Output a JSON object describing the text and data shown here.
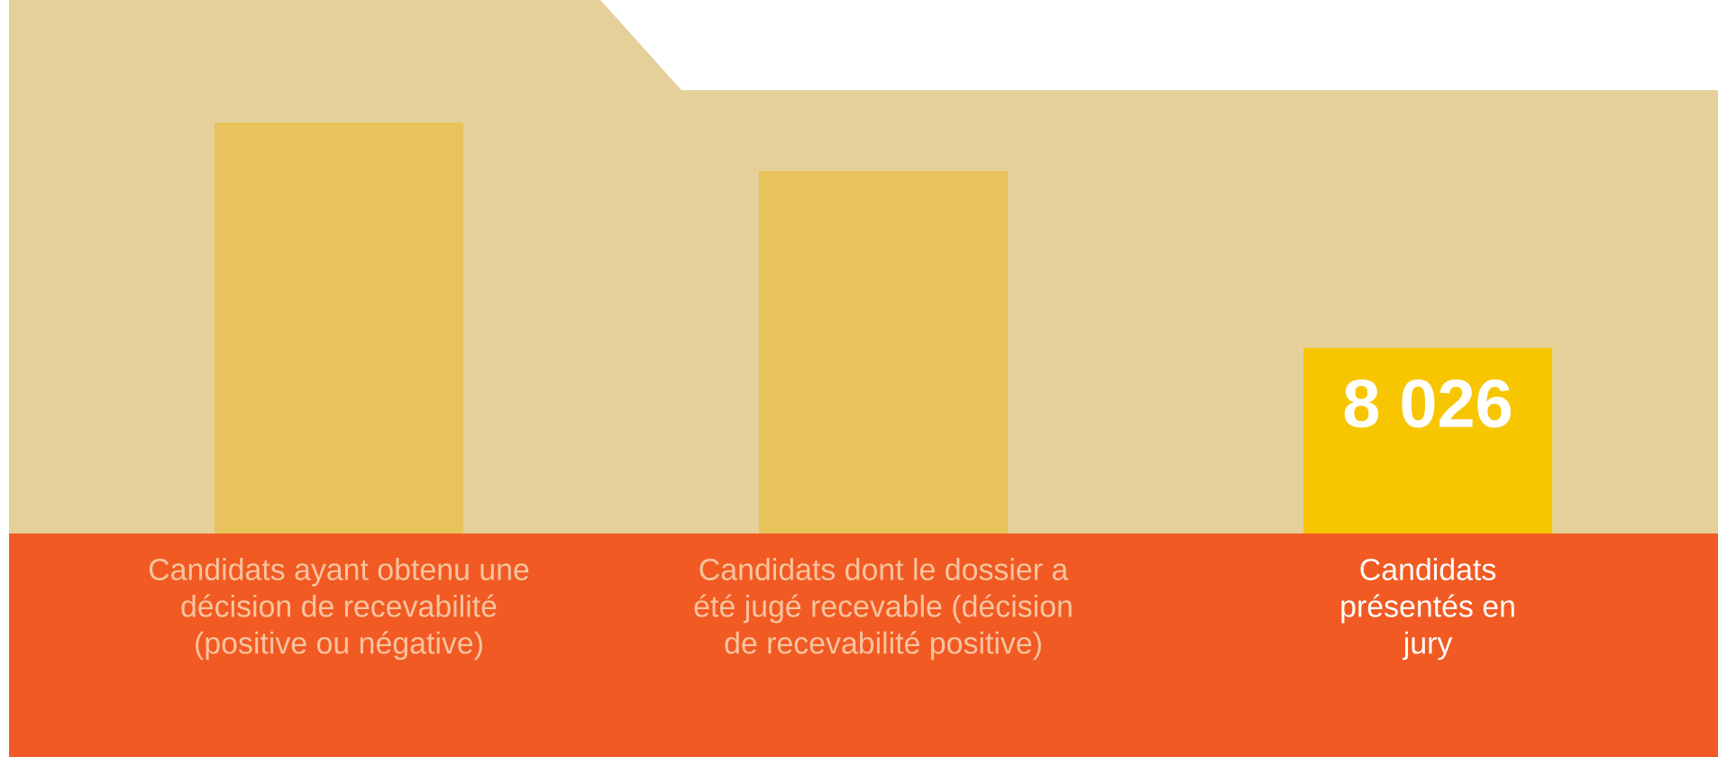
{
  "chart_data": {
    "type": "bar",
    "tick_labels": "x",
    "categories": [
      "Candidats ayant obtenu une décision de recevabilité (positive ou négative)",
      "Candidats dont le dossier a été jugé recevable (décision de recevabilité positive)",
      "Candidats présentés en jury"
    ],
    "values": [
      17760,
      15660,
      8026
    ],
    "value_labels": [
      null,
      null,
      "8 026"
    ],
    "colors": [
      "#e8c25a",
      "#e8c25a",
      "#f7c600"
    ]
  }
}
